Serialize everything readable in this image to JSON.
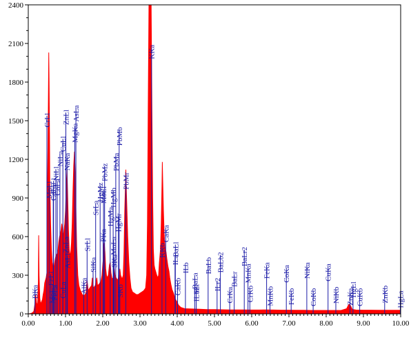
{
  "chart_data": {
    "type": "area",
    "title": "",
    "xlabel": "",
    "ylabel": "",
    "xlim": [
      0,
      10
    ],
    "ylim": [
      0,
      2400
    ],
    "x_ticks": [
      "0.00",
      "1.00",
      "2.00",
      "3.00",
      "4.00",
      "5.00",
      "6.00",
      "7.00",
      "8.00",
      "9.00",
      "10.00"
    ],
    "y_ticks": [
      "0",
      "300",
      "600",
      "900",
      "1200",
      "1500",
      "1800",
      "2100",
      "2400"
    ],
    "grid": false,
    "colors": {
      "spectrum": "#ff0000",
      "markers": "#1a1aa6",
      "axes": "#000000",
      "background": "#ffffff"
    },
    "series": [
      {
        "points": [
          [
            0.0,
            0
          ],
          [
            0.05,
            2
          ],
          [
            0.1,
            6
          ],
          [
            0.15,
            20
          ],
          [
            0.18,
            80
          ],
          [
            0.2,
            150
          ],
          [
            0.22,
            90
          ],
          [
            0.25,
            60
          ],
          [
            0.27,
            250
          ],
          [
            0.28,
            610
          ],
          [
            0.29,
            300
          ],
          [
            0.31,
            120
          ],
          [
            0.33,
            80
          ],
          [
            0.35,
            90
          ],
          [
            0.38,
            110
          ],
          [
            0.4,
            150
          ],
          [
            0.42,
            180
          ],
          [
            0.44,
            240
          ],
          [
            0.46,
            260
          ],
          [
            0.48,
            280
          ],
          [
            0.5,
            320
          ],
          [
            0.51,
            800
          ],
          [
            0.52,
            1100
          ],
          [
            0.53,
            1300
          ],
          [
            0.54,
            1700
          ],
          [
            0.55,
            2030
          ],
          [
            0.56,
            1800
          ],
          [
            0.57,
            1400
          ],
          [
            0.58,
            1000
          ],
          [
            0.6,
            700
          ],
          [
            0.62,
            500
          ],
          [
            0.64,
            400
          ],
          [
            0.66,
            370
          ],
          [
            0.68,
            360
          ],
          [
            0.7,
            380
          ],
          [
            0.72,
            420
          ],
          [
            0.74,
            450
          ],
          [
            0.76,
            460
          ],
          [
            0.78,
            470
          ],
          [
            0.8,
            500
          ],
          [
            0.82,
            560
          ],
          [
            0.84,
            600
          ],
          [
            0.86,
            620
          ],
          [
            0.88,
            650
          ],
          [
            0.9,
            700
          ],
          [
            0.92,
            650
          ],
          [
            0.94,
            600
          ],
          [
            0.96,
            650
          ],
          [
            0.98,
            700
          ],
          [
            1.0,
            800
          ],
          [
            1.02,
            1000
          ],
          [
            1.04,
            1120
          ],
          [
            1.06,
            900
          ],
          [
            1.08,
            650
          ],
          [
            1.1,
            500
          ],
          [
            1.12,
            450
          ],
          [
            1.14,
            480
          ],
          [
            1.16,
            550
          ],
          [
            1.18,
            700
          ],
          [
            1.2,
            950
          ],
          [
            1.22,
            1150
          ],
          [
            1.24,
            1260
          ],
          [
            1.26,
            1100
          ],
          [
            1.28,
            800
          ],
          [
            1.3,
            520
          ],
          [
            1.33,
            300
          ],
          [
            1.36,
            220
          ],
          [
            1.4,
            180
          ],
          [
            1.45,
            150
          ],
          [
            1.5,
            140
          ],
          [
            1.55,
            160
          ],
          [
            1.58,
            260
          ],
          [
            1.61,
            180
          ],
          [
            1.65,
            200
          ],
          [
            1.7,
            220
          ],
          [
            1.72,
            280
          ],
          [
            1.75,
            200
          ],
          [
            1.8,
            220
          ],
          [
            1.84,
            280
          ],
          [
            1.86,
            220
          ],
          [
            1.9,
            230
          ],
          [
            1.95,
            250
          ],
          [
            1.98,
            300
          ],
          [
            2.0,
            380
          ],
          [
            2.02,
            450
          ],
          [
            2.04,
            550
          ],
          [
            2.06,
            480
          ],
          [
            2.08,
            350
          ],
          [
            2.1,
            300
          ],
          [
            2.12,
            280
          ],
          [
            2.15,
            300
          ],
          [
            2.18,
            380
          ],
          [
            2.2,
            400
          ],
          [
            2.22,
            320
          ],
          [
            2.25,
            270
          ],
          [
            2.28,
            280
          ],
          [
            2.31,
            350
          ],
          [
            2.33,
            300
          ],
          [
            2.36,
            280
          ],
          [
            2.4,
            260
          ],
          [
            2.44,
            300
          ],
          [
            2.46,
            350
          ],
          [
            2.48,
            300
          ],
          [
            2.52,
            270
          ],
          [
            2.55,
            300
          ],
          [
            2.57,
            480
          ],
          [
            2.59,
            800
          ],
          [
            2.61,
            1000
          ],
          [
            2.62,
            1120
          ],
          [
            2.63,
            1000
          ],
          [
            2.65,
            800
          ],
          [
            2.67,
            600
          ],
          [
            2.7,
            400
          ],
          [
            2.73,
            280
          ],
          [
            2.76,
            200
          ],
          [
            2.8,
            170
          ],
          [
            2.85,
            160
          ],
          [
            2.9,
            150
          ],
          [
            2.95,
            150
          ],
          [
            3.0,
            160
          ],
          [
            3.05,
            170
          ],
          [
            3.1,
            180
          ],
          [
            3.15,
            200
          ],
          [
            3.18,
            300
          ],
          [
            3.2,
            700
          ],
          [
            3.22,
            1600
          ],
          [
            3.24,
            2400
          ],
          [
            3.26,
            2400
          ],
          [
            3.28,
            2400
          ],
          [
            3.3,
            2400
          ],
          [
            3.32,
            1600
          ],
          [
            3.34,
            900
          ],
          [
            3.36,
            500
          ],
          [
            3.38,
            380
          ],
          [
            3.4,
            350
          ],
          [
            3.42,
            330
          ],
          [
            3.45,
            300
          ],
          [
            3.48,
            280
          ],
          [
            3.5,
            300
          ],
          [
            3.52,
            400
          ],
          [
            3.55,
            500
          ],
          [
            3.57,
            700
          ],
          [
            3.59,
            1000
          ],
          [
            3.6,
            1180
          ],
          [
            3.61,
            1050
          ],
          [
            3.63,
            800
          ],
          [
            3.65,
            620
          ],
          [
            3.67,
            520
          ],
          [
            3.7,
            480
          ],
          [
            3.72,
            430
          ],
          [
            3.75,
            370
          ],
          [
            3.78,
            330
          ],
          [
            3.8,
            280
          ],
          [
            3.83,
            230
          ],
          [
            3.86,
            190
          ],
          [
            3.9,
            160
          ],
          [
            3.93,
            130
          ],
          [
            3.96,
            110
          ],
          [
            4.0,
            90
          ],
          [
            4.03,
            70
          ],
          [
            4.06,
            60
          ],
          [
            4.1,
            50
          ],
          [
            4.2,
            40
          ],
          [
            4.4,
            38
          ],
          [
            4.6,
            36
          ],
          [
            4.8,
            34
          ],
          [
            5.0,
            33
          ],
          [
            5.2,
            32
          ],
          [
            5.4,
            31
          ],
          [
            5.6,
            31
          ],
          [
            5.8,
            31
          ],
          [
            6.0,
            30
          ],
          [
            6.2,
            30
          ],
          [
            6.4,
            31
          ],
          [
            6.6,
            30
          ],
          [
            6.8,
            29
          ],
          [
            7.0,
            29
          ],
          [
            7.2,
            28
          ],
          [
            7.4,
            28
          ],
          [
            7.6,
            27
          ],
          [
            7.8,
            27
          ],
          [
            8.0,
            27
          ],
          [
            8.2,
            27
          ],
          [
            8.4,
            27
          ],
          [
            8.55,
            40
          ],
          [
            8.6,
            70
          ],
          [
            8.63,
            75
          ],
          [
            8.66,
            60
          ],
          [
            8.7,
            35
          ],
          [
            8.8,
            30
          ],
          [
            9.0,
            29
          ],
          [
            9.2,
            29
          ],
          [
            9.4,
            28
          ],
          [
            9.6,
            28
          ],
          [
            9.8,
            28
          ],
          [
            10.0,
            28
          ]
        ]
      }
    ],
    "markers": [
      {
        "label": "BKa",
        "x": 0.18,
        "y": 225
      },
      {
        "label": "MnLa",
        "x": 0.64,
        "y": 225
      },
      {
        "label": "FeLa",
        "x": 0.7,
        "y": 225
      },
      {
        "label": "FeLl",
        "x": 0.6,
        "y": 330
      },
      {
        "label": "CuLa",
        "x": 0.93,
        "y": 250
      },
      {
        "label": "AsLl",
        "x": 1.05,
        "y": 470
      },
      {
        "label": "ZnLa",
        "x": 1.01,
        "y": 600
      },
      {
        "label": "MgKa",
        "x": 1.25,
        "y": 1480
      },
      {
        "label": "AsLa",
        "x": 1.28,
        "y": 1620
      },
      {
        "label": "NaKa",
        "x": 1.04,
        "y": 1250
      },
      {
        "label": "NiLa",
        "x": 0.85,
        "y": 1265
      },
      {
        "label": "CuLl",
        "x": 0.93,
        "y": 1380
      },
      {
        "label": "ZnLl",
        "x": 1.01,
        "y": 1585
      },
      {
        "label": "CoLa",
        "x": 0.78,
        "y": 1050
      },
      {
        "label": "CdLl",
        "x": 0.67,
        "y": 1000
      },
      {
        "label": "NiLl",
        "x": 0.74,
        "y": 1145
      },
      {
        "label": "CrLl",
        "x": 0.5,
        "y": 1560
      },
      {
        "label": "MnLl",
        "x": 0.56,
        "y": 1030
      },
      {
        "label": "CoLl",
        "x": 0.68,
        "y": 1055
      },
      {
        "label": "AlKa",
        "x": 1.49,
        "y": 280
      },
      {
        "label": "SrLl",
        "x": 1.58,
        "y": 590
      },
      {
        "label": "SiKa",
        "x": 1.74,
        "y": 440
      },
      {
        "label": "SrLa",
        "x": 1.81,
        "y": 880
      },
      {
        "label": "HgMz",
        "x": 1.93,
        "y": 1020
      },
      {
        "label": "PbMz",
        "x": 2.05,
        "y": 1170
      },
      {
        "label": "MoLl",
        "x": 2.02,
        "y": 990
      },
      {
        "label": "PKa",
        "x": 2.01,
        "y": 660
      },
      {
        "label": "HgMa",
        "x": 2.2,
        "y": 830
      },
      {
        "label": "HgMb",
        "x": 2.28,
        "y": 980
      },
      {
        "label": "PbMa",
        "x": 2.35,
        "y": 1250
      },
      {
        "label": "PbMb",
        "x": 2.44,
        "y": 1450
      },
      {
        "label": "HgMr",
        "x": 2.42,
        "y": 780
      },
      {
        "label": "PbMr",
        "x": 2.62,
        "y": 1100
      },
      {
        "label": "MoLa",
        "x": 2.29,
        "y": 600
      },
      {
        "label": "SKa",
        "x": 2.31,
        "y": 460
      },
      {
        "label": "SKb",
        "x": 2.46,
        "y": 230
      },
      {
        "label": "KKa",
        "x": 3.31,
        "y": 2090
      },
      {
        "label": "KKb",
        "x": 3.59,
        "y": 550
      },
      {
        "label": "CaKa",
        "x": 3.69,
        "y": 690
      },
      {
        "label": "BaLl",
        "x": 3.95,
        "y": 560
      },
      {
        "label": "ILa",
        "x": 3.94,
        "y": 460
      },
      {
        "label": "CaKb",
        "x": 4.01,
        "y": 280
      },
      {
        "label": "ILb",
        "x": 4.22,
        "y": 400
      },
      {
        "label": "ILr",
        "x": 4.51,
        "y": 235
      },
      {
        "label": "ILb2",
        "x": 4.51,
        "y": 210
      },
      {
        "label": "BaLa",
        "x": 4.47,
        "y": 320
      },
      {
        "label": "BaLb",
        "x": 4.83,
        "y": 440
      },
      {
        "label": "ILr2",
        "x": 5.07,
        "y": 280
      },
      {
        "label": "BaLb2",
        "x": 5.16,
        "y": 480
      },
      {
        "label": "BaLr",
        "x": 5.53,
        "y": 330
      },
      {
        "label": "CrKa",
        "x": 5.41,
        "y": 210
      },
      {
        "label": "CrKb",
        "x": 5.95,
        "y": 220
      },
      {
        "label": "BaLr2",
        "x": 5.8,
        "y": 520
      },
      {
        "label": "MnKa",
        "x": 5.9,
        "y": 390
      },
      {
        "label": "MnKb",
        "x": 6.49,
        "y": 215
      },
      {
        "label": "FeKa",
        "x": 6.4,
        "y": 400
      },
      {
        "label": "FeKb",
        "x": 7.06,
        "y": 200
      },
      {
        "label": "CoKa",
        "x": 6.93,
        "y": 380
      },
      {
        "label": "CoKb",
        "x": 7.65,
        "y": 200
      },
      {
        "label": "NiKa",
        "x": 7.48,
        "y": 400
      },
      {
        "label": "NiKb",
        "x": 8.26,
        "y": 210
      },
      {
        "label": "CuKa",
        "x": 8.05,
        "y": 390
      },
      {
        "label": "CuKb",
        "x": 8.9,
        "y": 200
      },
      {
        "label": "ZnKa",
        "x": 8.64,
        "y": 200
      },
      {
        "label": "HgLl",
        "x": 8.72,
        "y": 250
      },
      {
        "label": "ZnKb",
        "x": 9.57,
        "y": 220
      },
      {
        "label": "HgLa",
        "x": 9.99,
        "y": 180
      }
    ]
  }
}
